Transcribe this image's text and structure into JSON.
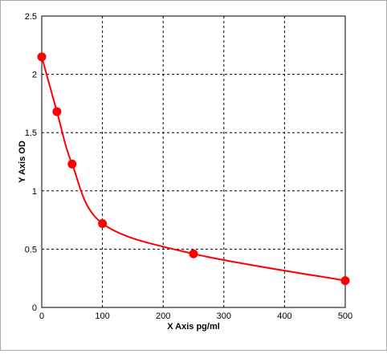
{
  "chart_data": {
    "type": "scatter",
    "xlabel": "X Axis pg/ml",
    "ylabel": "Y Axis OD",
    "xlim": [
      0,
      500
    ],
    "ylim": [
      0,
      2.5
    ],
    "x_ticks": [
      "0",
      "100",
      "200",
      "300",
      "400",
      "500"
    ],
    "y_ticks": [
      "0",
      "0.5",
      "1",
      "1.5",
      "2",
      "2.5"
    ],
    "grid": true,
    "series": [
      {
        "x": [
          0,
          25,
          50,
          100,
          250,
          500
        ],
        "y": [
          2.15,
          1.68,
          1.23,
          0.72,
          0.46,
          0.23
        ],
        "color": "#ff0000",
        "marker": "circle",
        "fit_curve": true
      }
    ]
  }
}
